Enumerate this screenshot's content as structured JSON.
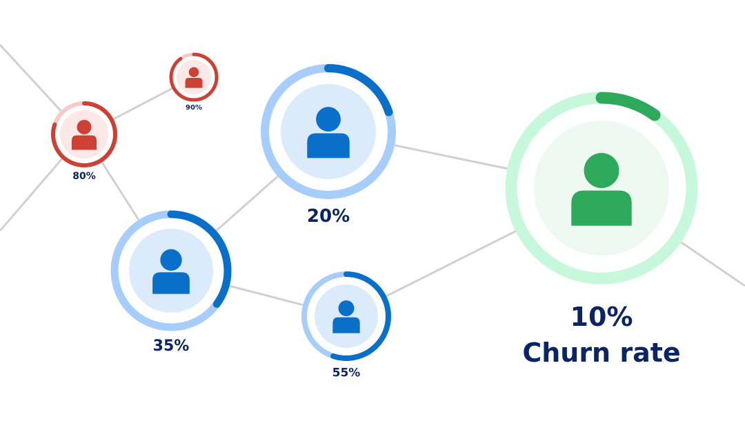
{
  "colors": {
    "connector": "#d0d0d0",
    "label": "#0b2463",
    "red": {
      "track": "#fbc8c8",
      "progress": "#cc4133",
      "inner": "#fde8e8",
      "icon": "#cc4133"
    },
    "blue": {
      "track": "#a6cdfb",
      "progress": "#0a6fc8",
      "inner": "#dcebfc",
      "icon": "#0a6fc8"
    },
    "green": {
      "track": "#c8f8dc",
      "progress": "#2ea95c",
      "inner": "#eefaf1",
      "icon": "#2ea95c"
    }
  },
  "nodes": [
    {
      "id": "node-80",
      "percent": 80,
      "label": "80%",
      "theme": "red"
    },
    {
      "id": "node-90",
      "percent": 90,
      "label": "90%",
      "theme": "red"
    },
    {
      "id": "node-20",
      "percent": 20,
      "label": "20%",
      "theme": "blue"
    },
    {
      "id": "node-35",
      "percent": 35,
      "label": "35%",
      "theme": "blue"
    },
    {
      "id": "node-55",
      "percent": 55,
      "label": "55%",
      "theme": "blue"
    },
    {
      "id": "node-10",
      "percent": 10,
      "label": "10%",
      "theme": "green"
    }
  ],
  "highlight": {
    "percent_label": "10%",
    "caption": "Churn rate"
  }
}
